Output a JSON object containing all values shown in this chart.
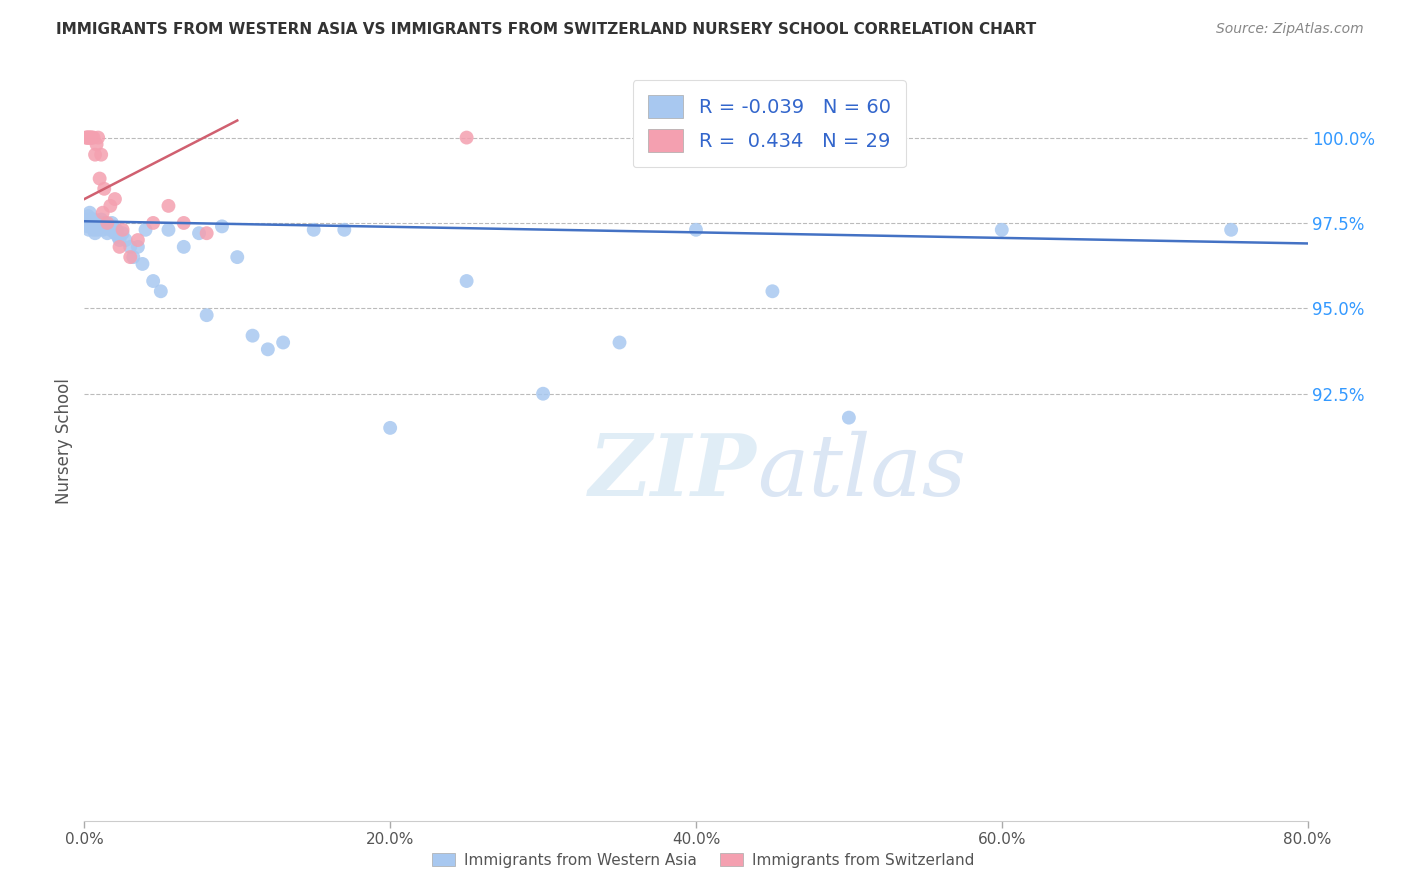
{
  "title": "IMMIGRANTS FROM WESTERN ASIA VS IMMIGRANTS FROM SWITZERLAND NURSERY SCHOOL CORRELATION CHART",
  "source": "Source: ZipAtlas.com",
  "ylabel": "Nursery School",
  "legend_label1": "Immigrants from Western Asia",
  "legend_label2": "Immigrants from Switzerland",
  "R1": -0.039,
  "N1": 60,
  "R2": 0.434,
  "N2": 29,
  "color1": "#a8c8f0",
  "color2": "#f4a0b0",
  "trendline1_color": "#4472c4",
  "trendline2_color": "#d06070",
  "xmin": 0.0,
  "xmax": 80.0,
  "ymin": 80.0,
  "ymax": 102.2,
  "yticks": [
    92.5,
    95.0,
    97.5,
    100.0
  ],
  "xticks": [
    0.0,
    20.0,
    40.0,
    60.0,
    80.0
  ],
  "blue_x": [
    0.1,
    0.15,
    0.2,
    0.25,
    0.3,
    0.35,
    0.4,
    0.45,
    0.5,
    0.55,
    0.6,
    0.65,
    0.7,
    0.75,
    0.8,
    0.85,
    0.9,
    1.0,
    1.1,
    1.2,
    1.3,
    1.4,
    1.5,
    1.6,
    1.7,
    1.8,
    1.9,
    2.0,
    2.1,
    2.2,
    2.3,
    2.5,
    2.7,
    3.0,
    3.2,
    3.5,
    3.8,
    4.0,
    4.5,
    5.0,
    5.5,
    6.5,
    7.5,
    8.0,
    9.0,
    10.0,
    11.0,
    12.0,
    13.0,
    15.0,
    17.0,
    20.0,
    25.0,
    30.0,
    35.0,
    40.0,
    45.0,
    50.0,
    60.0,
    75.0
  ],
  "blue_y": [
    97.5,
    97.6,
    97.4,
    97.7,
    97.3,
    97.8,
    97.5,
    97.6,
    97.4,
    97.5,
    97.3,
    97.6,
    97.2,
    97.4,
    97.5,
    97.3,
    97.4,
    97.5,
    97.6,
    97.3,
    97.4,
    97.5,
    97.2,
    97.4,
    97.3,
    97.5,
    97.4,
    97.2,
    97.3,
    97.1,
    97.0,
    97.2,
    97.0,
    96.8,
    96.5,
    96.8,
    96.3,
    97.3,
    95.8,
    95.5,
    97.3,
    96.8,
    97.2,
    94.8,
    97.4,
    96.5,
    94.2,
    93.8,
    94.0,
    97.3,
    97.3,
    91.5,
    95.8,
    92.5,
    94.0,
    97.3,
    95.5,
    91.8,
    97.3,
    97.3
  ],
  "pink_x": [
    0.1,
    0.15,
    0.2,
    0.25,
    0.3,
    0.35,
    0.4,
    0.45,
    0.5,
    0.6,
    0.7,
    0.8,
    0.9,
    1.0,
    1.1,
    1.2,
    1.3,
    1.5,
    1.7,
    2.0,
    2.3,
    2.5,
    3.0,
    3.5,
    4.5,
    5.5,
    6.5,
    8.0,
    25.0
  ],
  "pink_y": [
    100.0,
    100.0,
    100.0,
    100.0,
    100.0,
    100.0,
    100.0,
    100.0,
    100.0,
    100.0,
    99.5,
    99.8,
    100.0,
    98.8,
    99.5,
    97.8,
    98.5,
    97.5,
    98.0,
    98.2,
    96.8,
    97.3,
    96.5,
    97.0,
    97.5,
    98.0,
    97.5,
    97.2,
    100.0
  ],
  "trendline1_x0": 0.0,
  "trendline1_x1": 80.0,
  "trendline1_y0": 97.55,
  "trendline1_y1": 96.9,
  "trendline2_x0": 0.0,
  "trendline2_x1": 10.0,
  "trendline2_y0": 98.2,
  "trendline2_y1": 100.5,
  "watermark": "ZIPatlas",
  "background_color": "#ffffff"
}
